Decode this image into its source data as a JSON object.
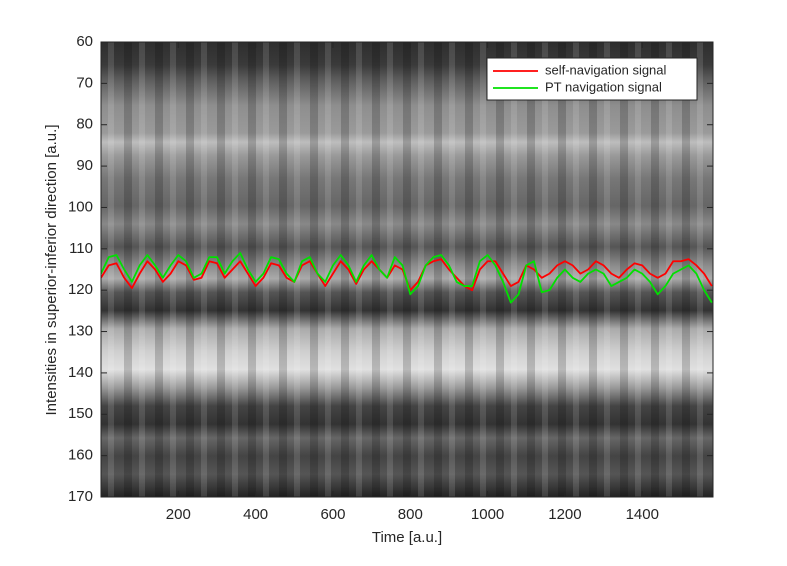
{
  "chart_data": {
    "type": "line",
    "x_label": "Time [a.u.]",
    "y_label": "Intensities in superior-inferior direction [a.u.]",
    "xlim": [
      0,
      1583
    ],
    "ylim": [
      60,
      170
    ],
    "y_reversed": true,
    "xticks": [
      200,
      400,
      600,
      800,
      1000,
      1200,
      1400
    ],
    "yticks": [
      60,
      70,
      80,
      90,
      100,
      110,
      120,
      130,
      140,
      150,
      160,
      170
    ],
    "legend_position": "top-right",
    "x": [
      0,
      20,
      40,
      60,
      80,
      100,
      120,
      140,
      160,
      180,
      200,
      220,
      240,
      260,
      280,
      300,
      320,
      340,
      360,
      380,
      400,
      420,
      440,
      460,
      480,
      500,
      520,
      540,
      560,
      580,
      600,
      620,
      640,
      660,
      680,
      700,
      720,
      740,
      760,
      780,
      800,
      820,
      840,
      860,
      880,
      900,
      920,
      940,
      960,
      980,
      1000,
      1020,
      1040,
      1060,
      1080,
      1100,
      1120,
      1140,
      1160,
      1180,
      1200,
      1220,
      1240,
      1260,
      1280,
      1300,
      1320,
      1340,
      1360,
      1380,
      1400,
      1420,
      1440,
      1460,
      1480,
      1500,
      1520,
      1540,
      1560,
      1580
    ],
    "series": [
      {
        "name": "self-navigation signal",
        "color": "#ff0000",
        "values": [
          117,
          114,
          113.5,
          117,
          119.5,
          116,
          113,
          115,
          118,
          116,
          113,
          114,
          117.5,
          117,
          113,
          113.5,
          117,
          115,
          113,
          116,
          119,
          117,
          113.5,
          114,
          117,
          118,
          114,
          113,
          116,
          119,
          116,
          113,
          115,
          118.5,
          115,
          113,
          115,
          117,
          114,
          115,
          120,
          118,
          114,
          113,
          112.5,
          115,
          117,
          119,
          120,
          115,
          113,
          113,
          116,
          119,
          118,
          114,
          115,
          117,
          116,
          114,
          113,
          114,
          116,
          115,
          113,
          114,
          116,
          117,
          115,
          113.5,
          114,
          116,
          117,
          116,
          113,
          113,
          112.5,
          114,
          116,
          119
        ]
      },
      {
        "name": "PT navigation signal",
        "color": "#00e000",
        "values": [
          116,
          112,
          111.5,
          115,
          118,
          114,
          111.5,
          114,
          117,
          114,
          111.5,
          113,
          117,
          116,
          112,
          112,
          116,
          113,
          111,
          115,
          118,
          116,
          112,
          112.5,
          116,
          118,
          113,
          112,
          116,
          118,
          114,
          111.5,
          114,
          118,
          114,
          111.5,
          115,
          117,
          112,
          114,
          121,
          119,
          114,
          112,
          111.5,
          114,
          118,
          119,
          119,
          113,
          111.5,
          114,
          118,
          123,
          121,
          114,
          113,
          120.5,
          120,
          117,
          115,
          117,
          118,
          116,
          115,
          116,
          119,
          118,
          117,
          115,
          116,
          118,
          121,
          119,
          116,
          115,
          114,
          116,
          120,
          123
        ]
      }
    ]
  }
}
